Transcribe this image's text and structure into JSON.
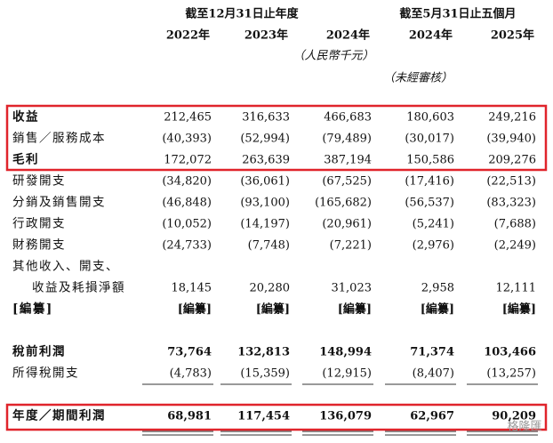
{
  "header": {
    "period_groups": [
      "截至12月31日止年度",
      "截至5月31日止五個月"
    ],
    "years": [
      "2022年",
      "2023年",
      "2024年",
      "2024年",
      "2025年"
    ],
    "units": "（人民幣千元）",
    "unaudited": "（未經審核）"
  },
  "table": {
    "rows": [
      {
        "label": [
          "收益"
        ],
        "values": [
          "212,465",
          "316,633",
          "466,683",
          "180,603",
          "249,216"
        ]
      },
      {
        "label": [
          "銷售／服務成本"
        ],
        "values": [
          "(40,393)",
          "(52,994)",
          "(79,489)",
          "(30,017)",
          "(39,940)"
        ]
      },
      {
        "label": [
          "毛利"
        ],
        "values": [
          "172,072",
          "263,639",
          "387,194",
          "150,586",
          "209,276"
        ]
      },
      {
        "label": [
          "研發開支"
        ],
        "values": [
          "(34,820)",
          "(36,061)",
          "(67,525)",
          "(17,416)",
          "(22,513)"
        ]
      },
      {
        "label": [
          "分銷及銷售開支"
        ],
        "values": [
          "(46,848)",
          "(93,100)",
          "(165,682)",
          "(56,537)",
          "(83,323)"
        ]
      },
      {
        "label": [
          "行政開支"
        ],
        "values": [
          "(10,052)",
          "(14,197)",
          "(20,961)",
          "(5,241)",
          "(7,688)"
        ]
      },
      {
        "label": [
          "財務開支"
        ],
        "values": [
          "(24,733)",
          "(7,748)",
          "(7,221)",
          "(2,976)",
          "(2,249)"
        ]
      },
      {
        "label": [
          "其他收入、開支、",
          "收益及耗損淨額"
        ],
        "values": [
          "18,145",
          "20,280",
          "31,023",
          "2,958",
          "12,111"
        ]
      },
      {
        "label": [
          "[編纂]"
        ],
        "values": [
          "[編纂]",
          "[編纂]",
          "[編纂]",
          "[編纂]",
          "[編纂]"
        ]
      },
      {
        "label": [
          "稅前利潤"
        ],
        "values": [
          "73,764",
          "132,813",
          "148,994",
          "71,374",
          "103,466"
        ]
      },
      {
        "label": [
          "所得稅開支"
        ],
        "values": [
          "(4,783)",
          "(15,359)",
          "(12,915)",
          "(8,407)",
          "(13,257)"
        ]
      },
      {
        "label": [
          "年度／期間利潤"
        ],
        "values": [
          "68,981",
          "117,454",
          "136,079",
          "62,967",
          "90,209"
        ]
      }
    ]
  },
  "watermark": "格隆匯"
}
